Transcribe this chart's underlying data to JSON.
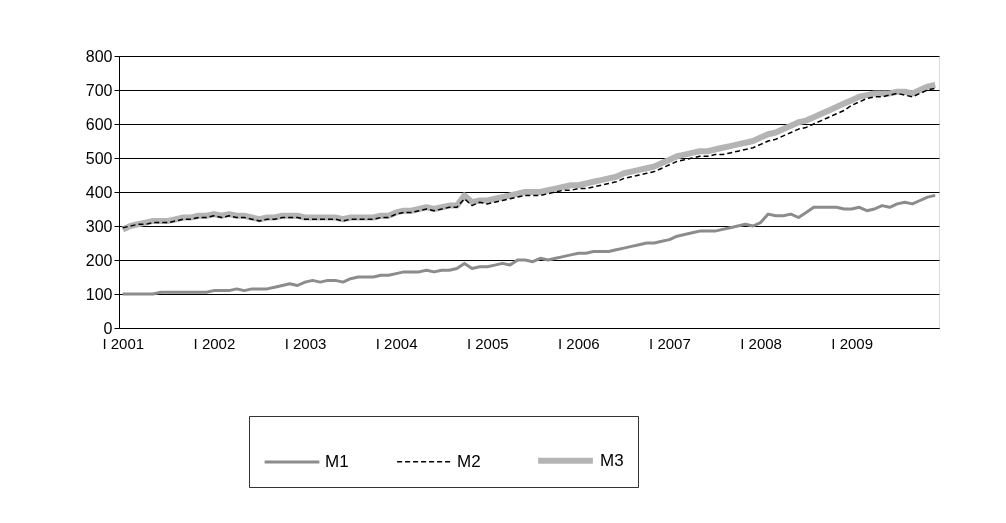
{
  "chart_data": {
    "type": "line",
    "categories": [
      "I 2001",
      null,
      null,
      null,
      null,
      null,
      null,
      null,
      null,
      null,
      null,
      null,
      "I 2002",
      null,
      null,
      null,
      null,
      null,
      null,
      null,
      null,
      null,
      null,
      null,
      "I 2003",
      null,
      null,
      null,
      null,
      null,
      null,
      null,
      null,
      null,
      null,
      null,
      "I 2004",
      null,
      null,
      null,
      null,
      null,
      null,
      null,
      null,
      null,
      null,
      null,
      "I 2005",
      null,
      null,
      null,
      null,
      null,
      null,
      null,
      null,
      null,
      null,
      null,
      "I 2006",
      null,
      null,
      null,
      null,
      null,
      null,
      null,
      null,
      null,
      null,
      null,
      "I 2007",
      null,
      null,
      null,
      null,
      null,
      null,
      null,
      null,
      null,
      null,
      null,
      "I 2008",
      null,
      null,
      null,
      null,
      null,
      null,
      null,
      null,
      null,
      null,
      null,
      "I 2009",
      null,
      null,
      null,
      null,
      null,
      null,
      null,
      null,
      null,
      null,
      null
    ],
    "series": [
      {
        "name": "M1",
        "color": "#8c8c8c",
        "line_style": "solid",
        "values": [
          100,
          100,
          100,
          100,
          100,
          105,
          105,
          105,
          105,
          105,
          105,
          105,
          110,
          110,
          110,
          115,
          110,
          115,
          115,
          115,
          120,
          125,
          130,
          125,
          135,
          140,
          135,
          140,
          140,
          135,
          145,
          150,
          150,
          150,
          155,
          155,
          160,
          165,
          165,
          165,
          170,
          165,
          170,
          170,
          175,
          190,
          175,
          180,
          180,
          185,
          190,
          185,
          200,
          200,
          195,
          205,
          200,
          205,
          210,
          215,
          220,
          220,
          225,
          225,
          225,
          230,
          235,
          240,
          245,
          250,
          250,
          255,
          260,
          270,
          275,
          280,
          285,
          285,
          285,
          290,
          295,
          300,
          305,
          300,
          310,
          335,
          330,
          330,
          335,
          325,
          340,
          355,
          355,
          355,
          355,
          350,
          350,
          355,
          345,
          350,
          360,
          355,
          365,
          370,
          365,
          375,
          385,
          390
        ]
      },
      {
        "name": "M2",
        "color": "#000000",
        "line_style": "dashed",
        "values": [
          295,
          300,
          305,
          305,
          310,
          310,
          310,
          315,
          320,
          320,
          325,
          325,
          330,
          325,
          330,
          325,
          325,
          320,
          315,
          320,
          320,
          325,
          325,
          325,
          320,
          320,
          320,
          320,
          320,
          315,
          320,
          320,
          320,
          320,
          325,
          325,
          335,
          340,
          340,
          345,
          350,
          345,
          350,
          355,
          355,
          380,
          360,
          370,
          365,
          370,
          375,
          380,
          385,
          390,
          390,
          390,
          395,
          400,
          405,
          405,
          410,
          410,
          415,
          420,
          425,
          430,
          440,
          445,
          450,
          455,
          460,
          470,
          480,
          490,
          495,
          500,
          505,
          505,
          510,
          510,
          515,
          520,
          525,
          530,
          540,
          550,
          555,
          565,
          575,
          585,
          590,
          600,
          610,
          620,
          630,
          640,
          655,
          665,
          675,
          680,
          680,
          685,
          690,
          685,
          680,
          690,
          700,
          705
        ]
      },
      {
        "name": "M3",
        "color": "#b4b4b4",
        "line_style": "solid",
        "values": [
          290,
          300,
          305,
          310,
          315,
          315,
          315,
          320,
          325,
          325,
          330,
          330,
          335,
          330,
          335,
          330,
          330,
          325,
          320,
          325,
          325,
          330,
          330,
          330,
          325,
          325,
          325,
          325,
          325,
          320,
          325,
          325,
          325,
          325,
          330,
          330,
          340,
          345,
          345,
          350,
          355,
          350,
          355,
          360,
          360,
          390,
          370,
          375,
          375,
          380,
          385,
          390,
          395,
          400,
          400,
          400,
          405,
          410,
          415,
          420,
          420,
          425,
          430,
          435,
          440,
          445,
          455,
          460,
          465,
          470,
          475,
          485,
          495,
          505,
          510,
          515,
          520,
          520,
          525,
          530,
          535,
          540,
          545,
          550,
          560,
          570,
          575,
          585,
          595,
          605,
          610,
          620,
          630,
          640,
          650,
          660,
          670,
          680,
          685,
          690,
          690,
          690,
          695,
          695,
          690,
          700,
          710,
          715
        ]
      }
    ],
    "ylim": [
      0,
      800
    ],
    "yticks": [
      0,
      100,
      200,
      300,
      400,
      500,
      600,
      700,
      800
    ],
    "grid": "y",
    "legend": "bottom",
    "marker": "none"
  }
}
